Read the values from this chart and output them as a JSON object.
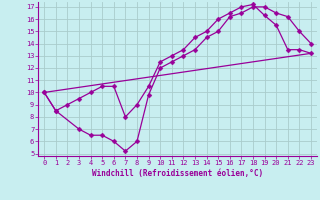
{
  "xlabel": "Windchill (Refroidissement éolien,°C)",
  "bg_color": "#c8eef0",
  "grid_color": "#aacccc",
  "line_color": "#990099",
  "xlim": [
    -0.5,
    23.5
  ],
  "ylim": [
    4.8,
    17.4
  ],
  "xticks": [
    0,
    1,
    2,
    3,
    4,
    5,
    6,
    7,
    8,
    9,
    10,
    11,
    12,
    13,
    14,
    15,
    16,
    17,
    18,
    19,
    20,
    21,
    22,
    23
  ],
  "yticks": [
    5,
    6,
    7,
    8,
    9,
    10,
    11,
    12,
    13,
    14,
    15,
    16,
    17
  ],
  "line1_x": [
    0,
    1,
    3,
    4,
    5,
    6,
    7,
    8,
    9,
    10,
    11,
    12,
    13,
    14,
    15,
    16,
    17,
    18,
    19,
    20,
    21,
    22,
    23
  ],
  "line1_y": [
    10,
    8.5,
    7.0,
    6.5,
    6.5,
    6.0,
    5.2,
    6.0,
    9.8,
    12.0,
    12.5,
    13.0,
    13.5,
    14.5,
    15.0,
    16.2,
    16.5,
    17.0,
    17.0,
    16.5,
    16.2,
    15.0,
    14.0
  ],
  "line2_x": [
    0,
    1,
    2,
    3,
    4,
    5,
    6,
    7,
    8,
    9,
    10,
    11,
    12,
    13,
    14,
    15,
    16,
    17,
    18,
    19,
    20,
    21,
    22,
    23
  ],
  "line2_y": [
    10,
    8.5,
    9.0,
    9.5,
    10.0,
    10.5,
    10.5,
    8.0,
    9.0,
    10.5,
    12.5,
    13.0,
    13.5,
    14.5,
    15.0,
    16.0,
    16.5,
    17.0,
    17.2,
    16.3,
    15.5,
    13.5,
    13.5,
    13.2
  ],
  "line3_x": [
    0,
    23
  ],
  "line3_y": [
    10,
    13.2
  ],
  "markersize": 2.5,
  "linewidth": 0.9,
  "tick_labelsize": 5,
  "xlabel_fontsize": 5.5
}
